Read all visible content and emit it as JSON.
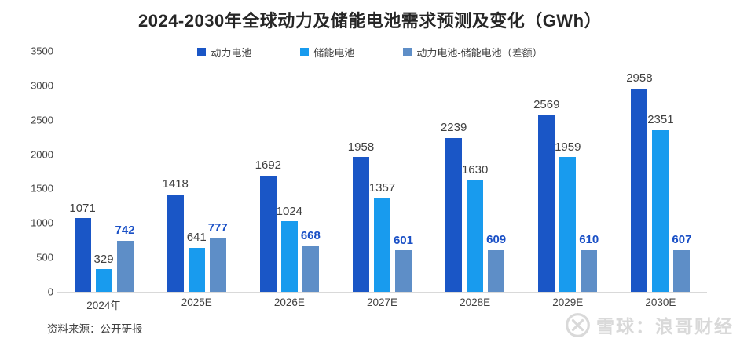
{
  "title": "2024-2030年全球动力及储能电池需求预测及变化（GWh）",
  "source_note": "资料来源：公开研报",
  "watermark": {
    "logo": "xueqiu-circle-x-logo",
    "text": "雪球：浪哥财经",
    "color": "#d9d9d9"
  },
  "colors": {
    "power_battery": "#1a56c6",
    "storage_battery": "#189bee",
    "difference": "#5e8ec7",
    "diff_label": "#1a50c6",
    "value_label": "#404040",
    "axis_line": "#d9d9d9"
  },
  "chart_data": {
    "type": "bar",
    "title": "2024-2030年全球动力及储能电池需求预测及变化（GWh）",
    "xlabel": "",
    "ylabel": "",
    "ylim": [
      0,
      3500
    ],
    "yticks": [
      0,
      500,
      1000,
      1500,
      2000,
      2500,
      3000,
      3500
    ],
    "grid": false,
    "legend_position": "top",
    "categories": [
      "2024年",
      "2025E",
      "2026E",
      "2027E",
      "2028E",
      "2029E",
      "2030E"
    ],
    "series": [
      {
        "name": "动力电池",
        "color": "#1a56c6",
        "label_color": "#404040",
        "bold_labels": false,
        "values": [
          1071,
          1418,
          1692,
          1958,
          2239,
          2569,
          2958
        ]
      },
      {
        "name": "储能电池",
        "color": "#189bee",
        "label_color": "#404040",
        "bold_labels": false,
        "values": [
          329,
          641,
          1024,
          1357,
          1630,
          1959,
          2351
        ]
      },
      {
        "name": "动力电池-储能电池（差额）",
        "color": "#5e8ec7",
        "label_color": "#1a50c6",
        "bold_labels": true,
        "values": [
          742,
          777,
          668,
          601,
          609,
          610,
          607
        ]
      }
    ]
  }
}
